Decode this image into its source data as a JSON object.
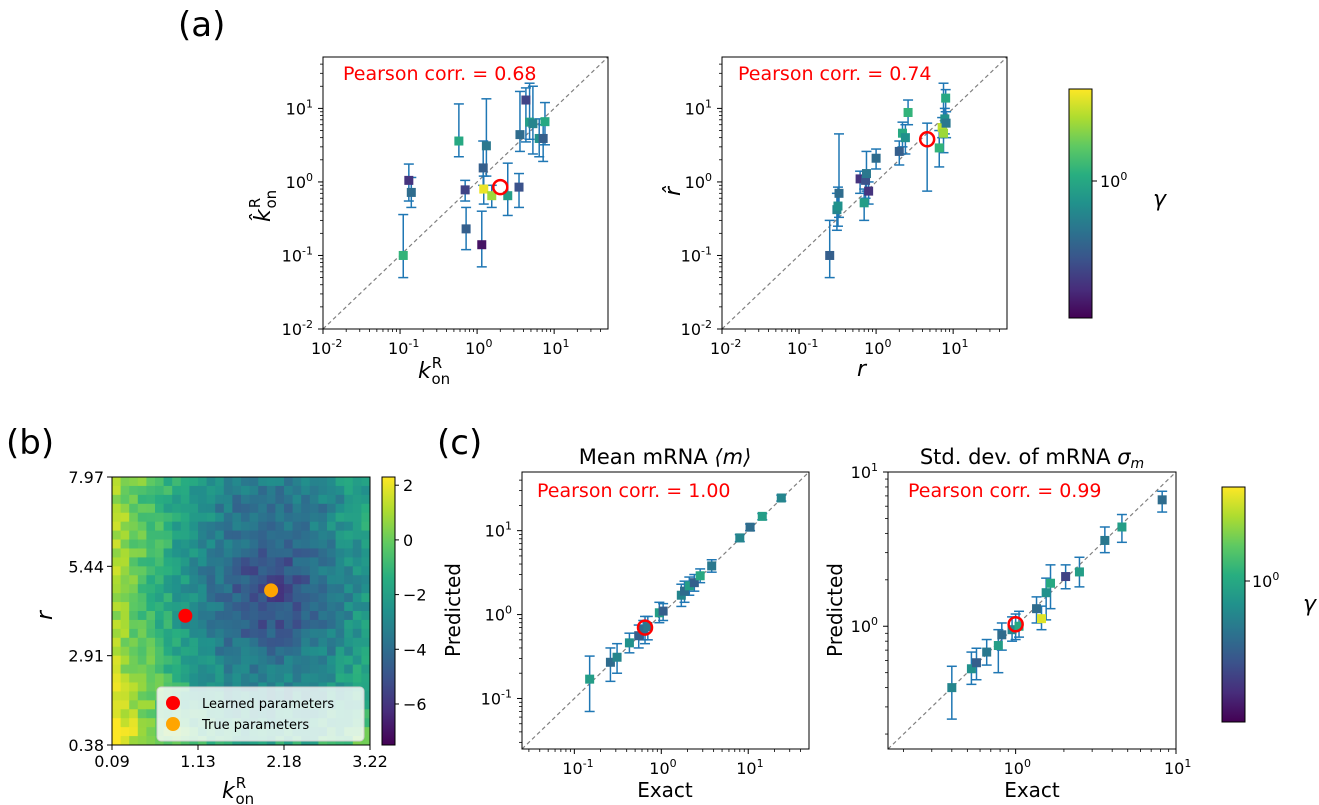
{
  "panel_labels": [
    "(a)",
    "(b)",
    "(c)"
  ],
  "colors": {
    "identity": "#808080",
    "errorbar": "#1f77b4",
    "pearson": "#ff0000",
    "highlight": "#ff0000"
  },
  "colormap": "viridis",
  "chart_data": [
    {
      "id": "a1",
      "type": "scatter",
      "panel": "(a)",
      "xlabel_main": "k",
      "xlabel_sup": "R",
      "xlabel_sub": "on",
      "ylabel_main": "k̂",
      "ylabel_sup": "R",
      "ylabel_sub": "on",
      "pearson_label": "Pearson corr. = ",
      "pearson_value": "0.68",
      "xscale": "log",
      "yscale": "log",
      "xlim": [
        0.01,
        50
      ],
      "ylim": [
        0.01,
        50
      ],
      "xticks": [
        0.01,
        0.1,
        1,
        10
      ],
      "yticks": [
        0.01,
        0.1,
        1,
        10
      ],
      "tick_base": "10",
      "tick_exponents": [
        "-2",
        "-1",
        "0",
        "1"
      ],
      "identity_line": true,
      "points": [
        {
          "x": 0.11,
          "y": 0.1,
          "lo": 0.05,
          "hi": 0.36,
          "g": 0.65
        },
        {
          "x": 0.13,
          "y": 1.05,
          "lo": 0.55,
          "hi": 1.75,
          "g": 0.15
        },
        {
          "x": 0.14,
          "y": 0.72,
          "lo": 0.45,
          "hi": 1.15,
          "g": 0.35
        },
        {
          "x": 0.58,
          "y": 3.6,
          "lo": 2.2,
          "hi": 11.5,
          "g": 0.6
        },
        {
          "x": 0.7,
          "y": 0.78,
          "lo": 0.55,
          "hi": 1.05,
          "g": 0.2
        },
        {
          "x": 0.72,
          "y": 0.23,
          "lo": 0.12,
          "hi": 0.45,
          "g": 0.3
        },
        {
          "x": 1.15,
          "y": 0.14,
          "lo": 0.07,
          "hi": 0.4,
          "g": 0.05
        },
        {
          "x": 1.2,
          "y": 1.55,
          "lo": 0.9,
          "hi": 3.6,
          "g": 0.3
        },
        {
          "x": 1.22,
          "y": 0.8,
          "lo": 0.5,
          "hi": 1.2,
          "g": 0.97
        },
        {
          "x": 1.32,
          "y": 3.1,
          "lo": 1.2,
          "hi": 13.5,
          "g": 0.4
        },
        {
          "x": 1.55,
          "y": 0.65,
          "lo": 0.45,
          "hi": 0.9,
          "g": 0.85
        },
        {
          "x": 2.5,
          "y": 0.65,
          "lo": 0.35,
          "hi": 1.8,
          "g": 0.55
        },
        {
          "x": 3.5,
          "y": 0.85,
          "lo": 0.45,
          "hi": 1.3,
          "g": 0.25
        },
        {
          "x": 3.6,
          "y": 4.4,
          "lo": 2.6,
          "hi": 17,
          "g": 0.35
        },
        {
          "x": 4.3,
          "y": 13.0,
          "lo": 3.5,
          "hi": 19,
          "g": 0.2
        },
        {
          "x": 4.8,
          "y": 6.5,
          "lo": 3.8,
          "hi": 22,
          "g": 0.55
        },
        {
          "x": 5.3,
          "y": 6.2,
          "lo": 2.4,
          "hi": 20,
          "g": 0.45
        },
        {
          "x": 6.4,
          "y": 3.9,
          "lo": 2.2,
          "hi": 7.2,
          "g": 0.5
        },
        {
          "x": 7.6,
          "y": 6.6,
          "lo": 3.2,
          "hi": 12,
          "g": 0.6
        },
        {
          "x": 7.2,
          "y": 3.9,
          "lo": 1.9,
          "hi": 6.0,
          "g": 0.3
        }
      ],
      "highlight": {
        "x": 2.0,
        "y": 0.85
      }
    },
    {
      "id": "a2",
      "type": "scatter",
      "panel": "(a)",
      "xlabel_main": "r",
      "ylabel_main": "r̂",
      "pearson_label": "Pearson corr. = ",
      "pearson_value": "0.74",
      "xscale": "log",
      "yscale": "log",
      "xlim": [
        0.01,
        50
      ],
      "ylim": [
        0.01,
        50
      ],
      "xticks": [
        0.01,
        0.1,
        1,
        10
      ],
      "yticks": [
        0.01,
        0.1,
        1,
        10
      ],
      "tick_base": "10",
      "tick_exponents": [
        "-2",
        "-1",
        "0",
        "1"
      ],
      "identity_line": true,
      "points": [
        {
          "x": 0.25,
          "y": 0.1,
          "lo": 0.05,
          "hi": 0.3,
          "g": 0.3
        },
        {
          "x": 0.31,
          "y": 0.42,
          "lo": 0.22,
          "hi": 0.7,
          "g": 0.45
        },
        {
          "x": 0.32,
          "y": 0.47,
          "lo": 0.25,
          "hi": 0.85,
          "g": 0.5
        },
        {
          "x": 0.33,
          "y": 0.7,
          "lo": 0.33,
          "hi": 4.5,
          "g": 0.35
        },
        {
          "x": 0.62,
          "y": 1.1,
          "lo": 0.7,
          "hi": 1.4,
          "g": 0.15
        },
        {
          "x": 0.7,
          "y": 0.52,
          "lo": 0.3,
          "hi": 0.8,
          "g": 0.55
        },
        {
          "x": 0.73,
          "y": 1.05,
          "lo": 0.6,
          "hi": 1.4,
          "g": 0.25
        },
        {
          "x": 0.75,
          "y": 1.3,
          "lo": 0.75,
          "hi": 2.6,
          "g": 0.4
        },
        {
          "x": 0.8,
          "y": 0.75,
          "lo": 0.5,
          "hi": 1.0,
          "g": 0.15
        },
        {
          "x": 1.0,
          "y": 2.1,
          "lo": 1.5,
          "hi": 2.8,
          "g": 0.35
        },
        {
          "x": 2.0,
          "y": 2.6,
          "lo": 1.7,
          "hi": 3.6,
          "g": 0.3
        },
        {
          "x": 2.2,
          "y": 4.6,
          "lo": 3.0,
          "hi": 6.5,
          "g": 0.6
        },
        {
          "x": 2.4,
          "y": 4.0,
          "lo": 2.4,
          "hi": 6.0,
          "g": 0.5
        },
        {
          "x": 2.6,
          "y": 8.8,
          "lo": 6.0,
          "hi": 13,
          "g": 0.65
        },
        {
          "x": 6.6,
          "y": 2.9,
          "lo": 1.6,
          "hi": 5.0,
          "g": 0.65
        },
        {
          "x": 7.2,
          "y": 5.5,
          "lo": 4.0,
          "hi": 7.5,
          "g": 0.9
        },
        {
          "x": 7.5,
          "y": 4.6,
          "lo": 2.5,
          "hi": 22,
          "g": 0.85
        },
        {
          "x": 7.8,
          "y": 7.2,
          "lo": 4.5,
          "hi": 10,
          "g": 0.5
        },
        {
          "x": 8.0,
          "y": 13.8,
          "lo": 9.0,
          "hi": 18,
          "g": 0.6
        },
        {
          "x": 8.1,
          "y": 6.3,
          "lo": 4.0,
          "hi": 9.0,
          "g": 0.4
        }
      ],
      "highlight": {
        "x": 4.6,
        "y": 3.8,
        "lo": 0.75,
        "hi": 6.3
      }
    },
    {
      "id": "b",
      "type": "heatmap",
      "panel": "(b)",
      "xlabel_main": "k",
      "xlabel_sup": "R",
      "xlabel_sub": "on",
      "ylabel_main": "r",
      "xtick_labels": [
        "0.09",
        "1.13",
        "2.18",
        "3.22"
      ],
      "ytick_labels": [
        "0.38",
        "2.91",
        "5.44",
        "7.97"
      ],
      "xlim": [
        0.09,
        3.22
      ],
      "ylim": [
        0.38,
        7.97
      ],
      "grid_size": 30,
      "colorbar_ticks": [
        2,
        0,
        -2,
        -4,
        -6
      ],
      "colorbar_tick_labels": [
        "2",
        "0",
        "−2",
        "−4",
        "−6"
      ],
      "clim": [
        -7.5,
        2.3
      ],
      "markers": [
        {
          "label": "Learned parameters",
          "x": 0.98,
          "y": 4.04,
          "color": "#ff0000"
        },
        {
          "label": "True parameters",
          "x": 2.02,
          "y": 4.76,
          "color": "#ffa500"
        }
      ],
      "legend_position": "lower-right"
    },
    {
      "id": "c1",
      "type": "scatter",
      "panel": "(c)",
      "title_text": "Mean mRNA ",
      "title_math": "⟨m⟩",
      "xlabel_main": "Exact",
      "ylabel_main": "Predicted",
      "pearson_label": "Pearson corr. = ",
      "pearson_value": "1.00",
      "xscale": "log",
      "yscale": "log",
      "xlim": [
        0.025,
        50
      ],
      "ylim": [
        0.025,
        50
      ],
      "xticks": [
        0.1,
        1,
        10
      ],
      "yticks": [
        0.1,
        1,
        10
      ],
      "tick_base": "10",
      "xtick_exponents": [
        "-1",
        "0",
        "1"
      ],
      "ytick_exponents": [
        "-1",
        "0",
        "1"
      ],
      "identity_line": true,
      "points": [
        {
          "x": 0.15,
          "y": 0.17,
          "lo": 0.07,
          "hi": 0.32,
          "g": 0.55
        },
        {
          "x": 0.26,
          "y": 0.27,
          "lo": 0.16,
          "hi": 0.4,
          "g": 0.35
        },
        {
          "x": 0.31,
          "y": 0.31,
          "lo": 0.2,
          "hi": 0.45,
          "g": 0.45
        },
        {
          "x": 0.43,
          "y": 0.46,
          "lo": 0.35,
          "hi": 0.6,
          "g": 0.5
        },
        {
          "x": 0.55,
          "y": 0.56,
          "lo": 0.4,
          "hi": 0.75,
          "g": 0.3
        },
        {
          "x": 0.62,
          "y": 0.66,
          "lo": 0.5,
          "hi": 0.85,
          "g": 0.35
        },
        {
          "x": 0.7,
          "y": 0.72,
          "lo": 0.5,
          "hi": 0.95,
          "g": 0.4
        },
        {
          "x": 0.95,
          "y": 1.05,
          "lo": 0.8,
          "hi": 1.4,
          "g": 0.55
        },
        {
          "x": 1.05,
          "y": 1.1,
          "lo": 0.85,
          "hi": 1.35,
          "g": 0.3
        },
        {
          "x": 1.7,
          "y": 1.7,
          "lo": 1.25,
          "hi": 2.3,
          "g": 0.45
        },
        {
          "x": 1.85,
          "y": 1.9,
          "lo": 1.4,
          "hi": 2.5,
          "g": 0.35
        },
        {
          "x": 2.1,
          "y": 2.2,
          "lo": 1.7,
          "hi": 2.8,
          "g": 0.55
        },
        {
          "x": 2.4,
          "y": 2.4,
          "lo": 1.9,
          "hi": 3.0,
          "g": 0.3
        },
        {
          "x": 2.8,
          "y": 2.9,
          "lo": 2.4,
          "hi": 3.5,
          "g": 0.6
        },
        {
          "x": 3.8,
          "y": 3.8,
          "lo": 3.2,
          "hi": 4.5,
          "g": 0.4
        },
        {
          "x": 8.0,
          "y": 8.2,
          "lo": 7.4,
          "hi": 9.0,
          "g": 0.45
        },
        {
          "x": 10.5,
          "y": 11.0,
          "lo": 10,
          "hi": 12,
          "g": 0.35
        },
        {
          "x": 14.5,
          "y": 14.8,
          "lo": 13.5,
          "hi": 16,
          "g": 0.55
        },
        {
          "x": 24,
          "y": 24.5,
          "lo": 22.5,
          "hi": 26.5,
          "g": 0.45
        }
      ],
      "highlight": {
        "x": 0.65,
        "y": 0.7,
        "lo": 0.45,
        "hi": 0.95
      }
    },
    {
      "id": "c2",
      "type": "scatter",
      "panel": "(c)",
      "title_text": "Std. dev. of mRNA ",
      "title_math": "σ",
      "title_math_sub": "m",
      "xlabel_main": "Exact",
      "ylabel_main": "Predicted",
      "pearson_label": "Pearson corr. = ",
      "pearson_value": "0.99",
      "xscale": "log",
      "yscale": "log",
      "xlim": [
        0.16,
        10
      ],
      "ylim": [
        0.16,
        10
      ],
      "xticks": [
        1,
        10
      ],
      "yticks": [
        1,
        10
      ],
      "tick_base": "10",
      "xtick_exponents": [
        "0",
        "1"
      ],
      "ytick_exponents": [
        "0",
        "1"
      ],
      "identity_line": true,
      "points": [
        {
          "x": 0.4,
          "y": 0.4,
          "lo": 0.25,
          "hi": 0.55,
          "g": 0.45
        },
        {
          "x": 0.53,
          "y": 0.53,
          "lo": 0.42,
          "hi": 0.68,
          "g": 0.5
        },
        {
          "x": 0.57,
          "y": 0.58,
          "lo": 0.45,
          "hi": 0.72,
          "g": 0.3
        },
        {
          "x": 0.66,
          "y": 0.68,
          "lo": 0.56,
          "hi": 0.82,
          "g": 0.4
        },
        {
          "x": 0.78,
          "y": 0.75,
          "lo": 0.5,
          "hi": 0.95,
          "g": 0.55
        },
        {
          "x": 0.82,
          "y": 0.88,
          "lo": 0.7,
          "hi": 1.05,
          "g": 0.35
        },
        {
          "x": 0.95,
          "y": 0.95,
          "lo": 0.8,
          "hi": 1.15,
          "g": 0.45
        },
        {
          "x": 1.05,
          "y": 1.0,
          "lo": 0.85,
          "hi": 1.25,
          "g": 0.6
        },
        {
          "x": 1.35,
          "y": 1.3,
          "lo": 1.05,
          "hi": 1.55,
          "g": 0.35
        },
        {
          "x": 1.45,
          "y": 1.12,
          "lo": 0.95,
          "hi": 1.35,
          "g": 0.95
        },
        {
          "x": 1.55,
          "y": 1.65,
          "lo": 1.1,
          "hi": 2.05,
          "g": 0.5
        },
        {
          "x": 1.65,
          "y": 1.9,
          "lo": 1.3,
          "hi": 2.5,
          "g": 0.6
        },
        {
          "x": 2.05,
          "y": 2.1,
          "lo": 1.75,
          "hi": 2.5,
          "g": 0.2
        },
        {
          "x": 2.5,
          "y": 2.25,
          "lo": 1.8,
          "hi": 2.8,
          "g": 0.55
        },
        {
          "x": 3.6,
          "y": 3.6,
          "lo": 3.0,
          "hi": 4.4,
          "g": 0.4
        },
        {
          "x": 4.6,
          "y": 4.4,
          "lo": 3.5,
          "hi": 5.3,
          "g": 0.55
        },
        {
          "x": 8.2,
          "y": 6.6,
          "lo": 5.5,
          "hi": 7.5,
          "g": 0.35
        }
      ],
      "highlight": {
        "x": 1.0,
        "y": 1.03,
        "lo": 0.82,
        "hi": 1.2
      }
    }
  ],
  "colorbars": [
    {
      "id": "cb-a",
      "label": "γ",
      "tick_base": "10",
      "tick_exponent": "0",
      "tick_value": 1
    },
    {
      "id": "cb-c",
      "label": "γ",
      "tick_base": "10",
      "tick_exponent": "0",
      "tick_value": 1
    }
  ]
}
